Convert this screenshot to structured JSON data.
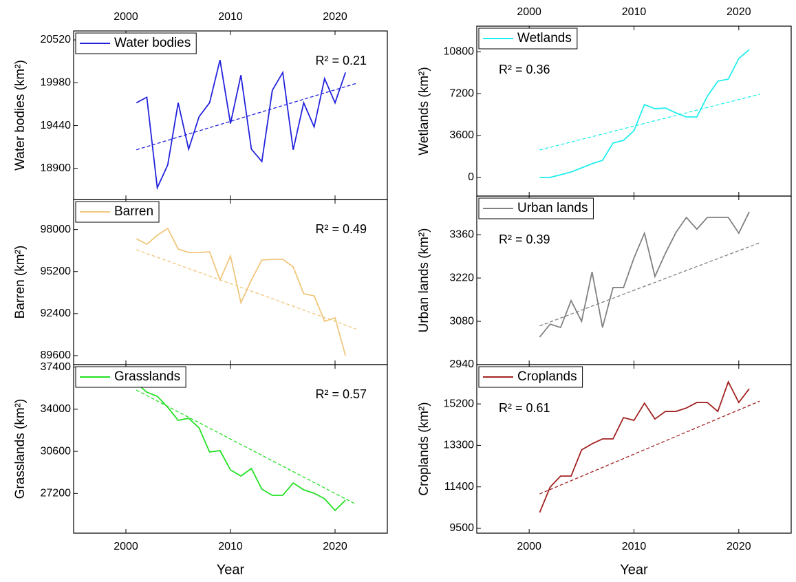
{
  "chart_data": [
    {
      "type": "line",
      "ylabel": "Water bodies (km²)",
      "annotation": "R² = 0.21",
      "legend": "upper left",
      "xtick_labels": "top",
      "x": [
        2001,
        2002,
        2003,
        2004,
        2005,
        2006,
        2007,
        2008,
        2009,
        2010,
        2011,
        2012,
        2013,
        2014,
        2015,
        2016,
        2017,
        2018,
        2019,
        2020,
        2021
      ],
      "series": [
        {
          "name": "Water bodies",
          "color": "#2222dd",
          "values": [
            19727,
            19797,
            18656,
            18944,
            19727,
            19143,
            19553,
            19727,
            20267,
            19466,
            20076,
            19143,
            18987,
            19884,
            20110,
            19135,
            19727,
            19423,
            20032,
            19727,
            20110
          ]
        }
      ],
      "trend": {
        "x": [
          2001,
          2022
        ],
        "values": [
          19135,
          19971
        ]
      },
      "xlim": [
        1995,
        2025
      ],
      "xticks": [
        2000,
        2010,
        2020
      ],
      "ylim": [
        18508,
        20633
      ],
      "yticks": [
        18900,
        19440,
        19980,
        20520
      ]
    },
    {
      "type": "line",
      "ylabel": "Barren (km²)",
      "annotation": "R² = 0.49",
      "legend": "upper left",
      "xtick_labels": "none",
      "x": [
        2001,
        2002,
        2003,
        2004,
        2005,
        2006,
        2007,
        2008,
        2009,
        2010,
        2011,
        2012,
        2013,
        2014,
        2015,
        2016,
        2017,
        2018,
        2019,
        2020,
        2021
      ],
      "series": [
        {
          "name": "Barren",
          "color": "#f0c67c",
          "values": [
            97387,
            97020,
            97616,
            98075,
            96700,
            96470,
            96470,
            96516,
            94637,
            96241,
            93125,
            94637,
            95966,
            96012,
            96012,
            95508,
            93720,
            93583,
            91887,
            92116,
            89596
          ]
        }
      ],
      "trend": {
        "x": [
          2001,
          2022
        ],
        "values": [
          96654,
          91383
        ]
      },
      "xlim": [
        1995,
        2025
      ],
      "xticks": [
        2000,
        2010,
        2020
      ],
      "ylim": [
        89000,
        100000
      ],
      "yticks": [
        89600,
        92400,
        95200,
        98000
      ]
    },
    {
      "type": "line",
      "ylabel": "Grasslands (km²)",
      "annotation": "R² = 0.57",
      "legend": "upper left",
      "xtick_labels": "bottom",
      "xlabel": "Year",
      "x": [
        2001,
        2002,
        2003,
        2004,
        2005,
        2006,
        2007,
        2008,
        2009,
        2010,
        2011,
        2012,
        2013,
        2014,
        2015,
        2016,
        2017,
        2018,
        2019,
        2020,
        2021
      ],
      "series": [
        {
          "name": "Grasslands",
          "color": "#22e022",
          "values": [
            36099,
            35378,
            35045,
            34157,
            33102,
            33269,
            32492,
            30549,
            30660,
            29106,
            28607,
            29217,
            27552,
            27053,
            27053,
            28052,
            27497,
            27219,
            26775,
            25832,
            26664
          ]
        }
      ],
      "trend": {
        "x": [
          2001,
          2022
        ],
        "values": [
          35544,
          26331
        ]
      },
      "xlim": [
        1995,
        2025
      ],
      "xticks": [
        2000,
        2010,
        2020
      ],
      "ylim": [
        24000,
        37600
      ],
      "yticks": [
        27200,
        30600,
        34000,
        37400
      ]
    },
    {
      "type": "line",
      "ylabel": "Wetlands (km²)",
      "annotation": "R² = 0.36",
      "legend": "upper left",
      "xtick_labels": "top",
      "x": [
        2001,
        2002,
        2003,
        2004,
        2005,
        2006,
        2007,
        2008,
        2009,
        2010,
        2011,
        2012,
        2013,
        2014,
        2015,
        2016,
        2017,
        2018,
        2019,
        2020,
        2021
      ],
      "series": [
        {
          "name": "Wetlands",
          "color": "#22eeee",
          "values": [
            0,
            0,
            232,
            468,
            823,
            1178,
            1473,
            2951,
            3187,
            4015,
            6260,
            5905,
            5965,
            5551,
            5197,
            5197,
            6970,
            8270,
            8448,
            10221,
            10988
          ]
        }
      ],
      "trend": {
        "x": [
          2001,
          2022
        ],
        "values": [
          2360,
          7147
        ]
      },
      "xlim": [
        1995,
        2025
      ],
      "xticks": [
        2000,
        2010,
        2020
      ],
      "ylim": [
        -1600,
        13000
      ],
      "yticks": [
        0,
        3600,
        7200,
        10800
      ]
    },
    {
      "type": "line",
      "ylabel": "Urban lands (km²)",
      "annotation": "R² = 0.39",
      "legend": "upper left",
      "xtick_labels": "none",
      "x": [
        2001,
        2002,
        2003,
        2004,
        2005,
        2006,
        2007,
        2008,
        2009,
        2010,
        2011,
        2012,
        2013,
        2014,
        2015,
        2016,
        2017,
        2018,
        2019,
        2020,
        2021
      ],
      "series": [
        {
          "name": "Urban lands",
          "color": "#808080",
          "values": [
            3029,
            3071,
            3060,
            3147,
            3080,
            3240,
            3060,
            3189,
            3189,
            3285,
            3365,
            3225,
            3300,
            3367,
            3416,
            3378,
            3416,
            3416,
            3416,
            3365,
            3434
          ]
        }
      ],
      "trend": {
        "x": [
          2001,
          2022
        ],
        "values": [
          3065,
          3334
        ]
      },
      "xlim": [
        1995,
        2025
      ],
      "xticks": [
        2000,
        2010,
        2020
      ],
      "ylim": [
        2940,
        3485
      ],
      "yticks": [
        2940,
        3080,
        3220,
        3360
      ]
    },
    {
      "type": "line",
      "ylabel": "Croplands (km²)",
      "annotation": "R² = 0.61",
      "legend": "upper left",
      "xtick_labels": "bottom",
      "xlabel": "Year",
      "x": [
        2001,
        2002,
        2003,
        2004,
        2005,
        2006,
        2007,
        2008,
        2009,
        2010,
        2011,
        2012,
        2013,
        2014,
        2015,
        2016,
        2017,
        2018,
        2019,
        2020,
        2021
      ],
      "series": [
        {
          "name": "Croplands",
          "color": "#a32222",
          "values": [
            10225,
            11391,
            11895,
            11895,
            13092,
            13375,
            13596,
            13596,
            14572,
            14446,
            15234,
            14509,
            14856,
            14856,
            15013,
            15265,
            15265,
            14856,
            16210,
            15265,
            15895
          ]
        }
      ],
      "trend": {
        "x": [
          2001,
          2022
        ],
        "values": [
          11076,
          15328
        ]
      },
      "xlim": [
        1995,
        2025
      ],
      "xticks": [
        2000,
        2010,
        2020
      ],
      "ylim": [
        9280,
        17000
      ],
      "yticks": [
        9500,
        11400,
        13300,
        15200
      ]
    }
  ]
}
